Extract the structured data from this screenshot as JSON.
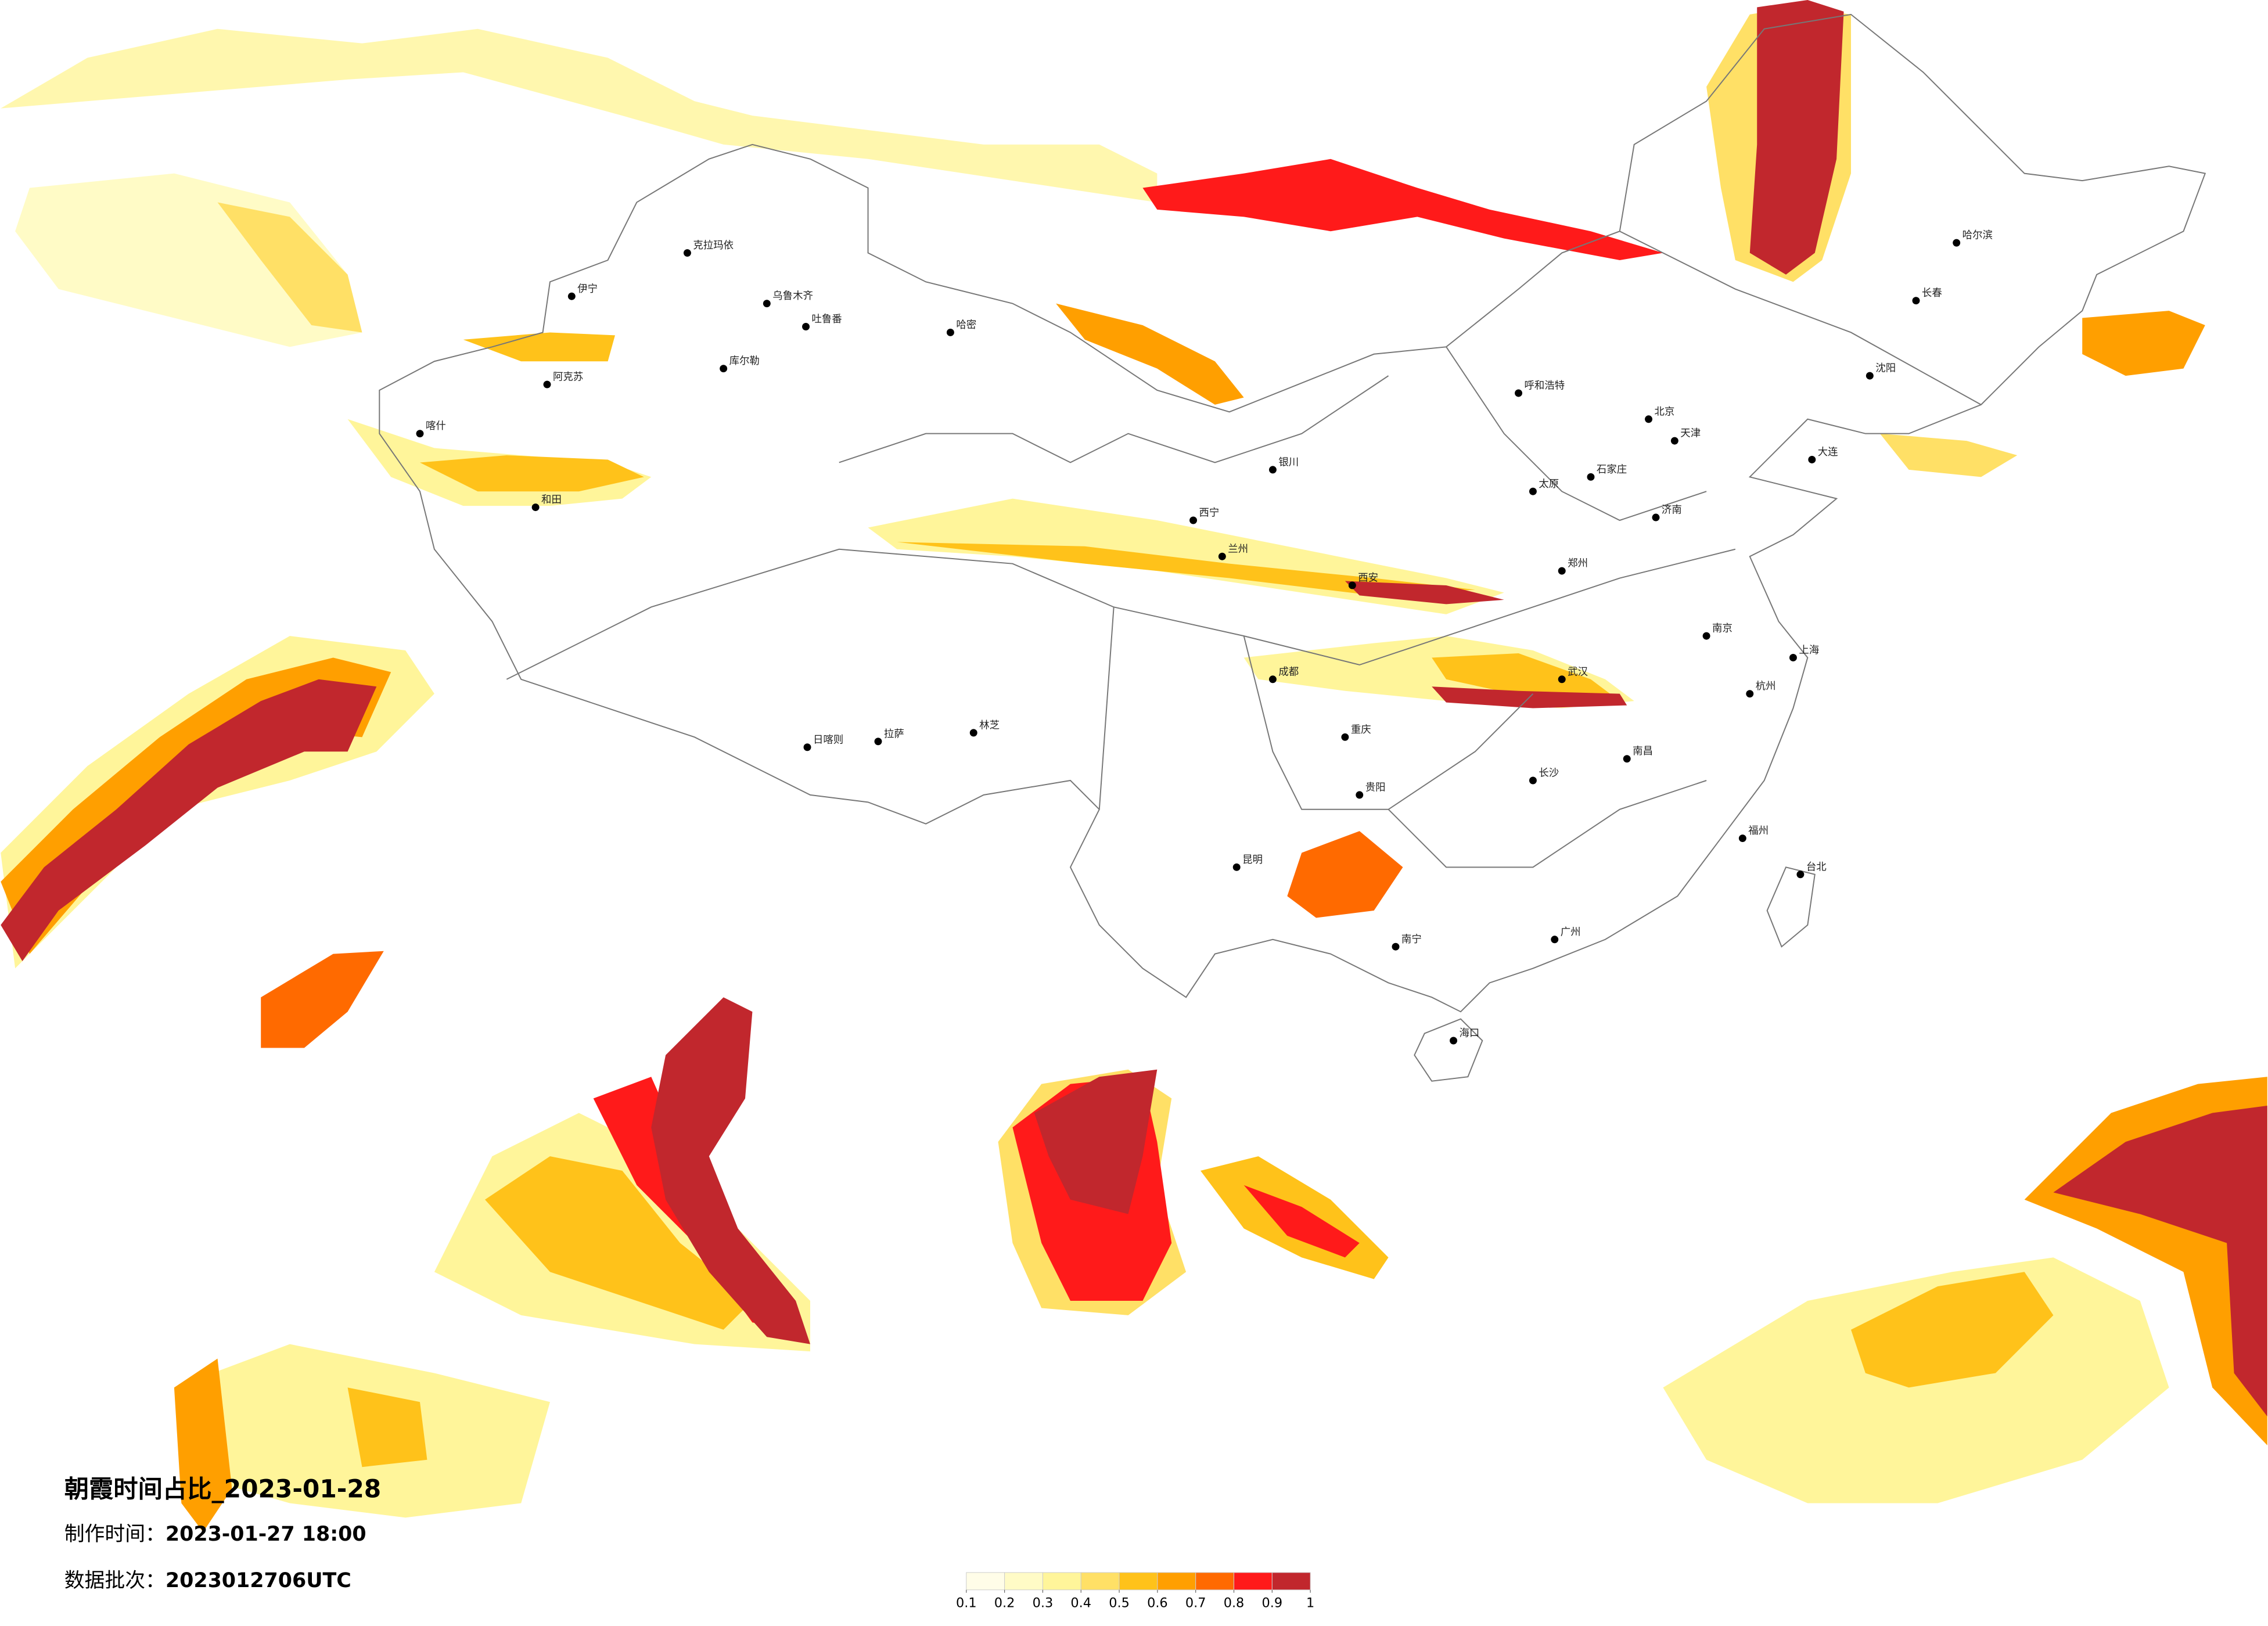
{
  "title": "朝霞时间占比_2023-01-28",
  "info": [
    {
      "label": "制作时间：",
      "value": "2023-01-27 18:00"
    },
    {
      "label": "数据批次：",
      "value": "2023012706UTC"
    }
  ],
  "legend": {
    "ticks": [
      0.1,
      0.2,
      0.3,
      0.4,
      0.5,
      0.6,
      0.7,
      0.8,
      0.9,
      1
    ],
    "colors": [
      "#fffde8",
      "#fffbc6",
      "#fff59a",
      "#ffe066",
      "#ffc21a",
      "#ff9f00",
      "#ff6a00",
      "#ff1a1a",
      "#c1272d"
    ]
  },
  "cities": [
    "克拉玛依",
    "伊宁",
    "乌鲁木齐",
    "吐鲁番",
    "哈密",
    "库尔勒",
    "阿克苏",
    "喀什",
    "和田",
    "拉萨",
    "日喀则",
    "林芝",
    "西宁",
    "兰州",
    "银川",
    "呼和浩特",
    "北京",
    "天津",
    "哈尔滨",
    "长春",
    "沈阳",
    "大连",
    "济南",
    "郑州",
    "西安",
    "成都",
    "重庆",
    "武汉",
    "南京",
    "上海",
    "杭州",
    "长沙",
    "南昌",
    "福州",
    "广州",
    "南宁",
    "昆明",
    "贵阳",
    "海口",
    "台北",
    "太原",
    "石家庄"
  ]
}
